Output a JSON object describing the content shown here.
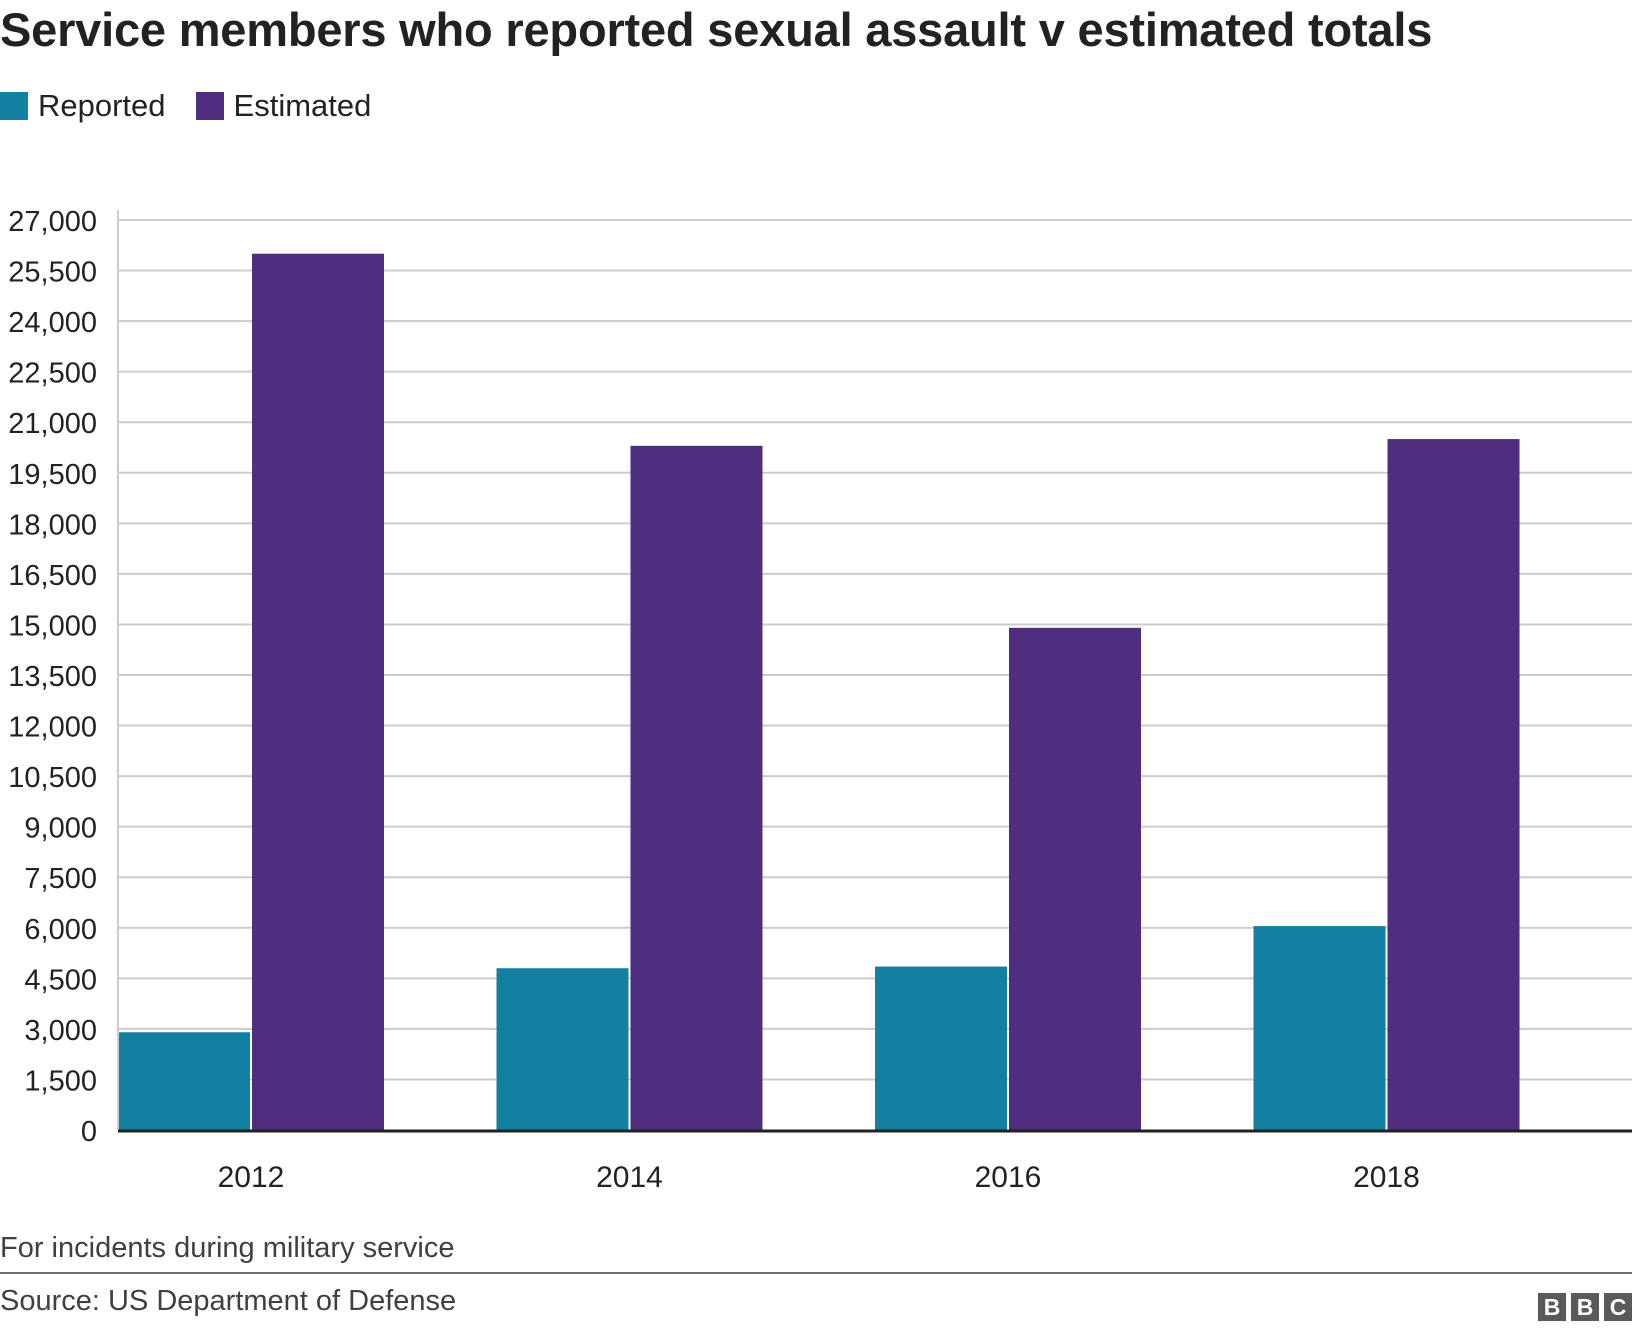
{
  "title": "Service members who reported sexual assault v estimated totals",
  "legend": [
    {
      "label": "Reported",
      "color": "#1380a1"
    },
    {
      "label": "Estimated",
      "color": "#4f2d7f"
    }
  ],
  "note": "For incidents during military service",
  "source": "Source: US Department of Defense",
  "logo": [
    "B",
    "B",
    "C"
  ],
  "chart_data": {
    "type": "bar",
    "title": "Service members who reported sexual assault v estimated totals",
    "categories": [
      "2012",
      "2014",
      "2016",
      "2018"
    ],
    "series": [
      {
        "name": "Reported",
        "color": "#1380a1",
        "values": [
          2900,
          4800,
          4850,
          6050
        ]
      },
      {
        "name": "Estimated",
        "color": "#4f2d7f",
        "values": [
          26000,
          20300,
          14900,
          20500
        ]
      }
    ],
    "ylim": [
      0,
      27000
    ],
    "yticks": [
      0,
      1500,
      3000,
      4500,
      6000,
      7500,
      9000,
      10500,
      12000,
      13500,
      15000,
      16500,
      18000,
      19500,
      21000,
      22500,
      24000,
      25500,
      27000
    ],
    "ytick_labels": [
      "0",
      "1,500",
      "3,000",
      "4,500",
      "6,000",
      "7,500",
      "9,000",
      "10,500",
      "12,000",
      "13,500",
      "15,000",
      "16,500",
      "18,000",
      "19,500",
      "21,000",
      "22,500",
      "24,000",
      "25,500",
      "27,000"
    ],
    "xlabel": "",
    "ylabel": "",
    "grid": true,
    "legend_position": "top-left"
  }
}
